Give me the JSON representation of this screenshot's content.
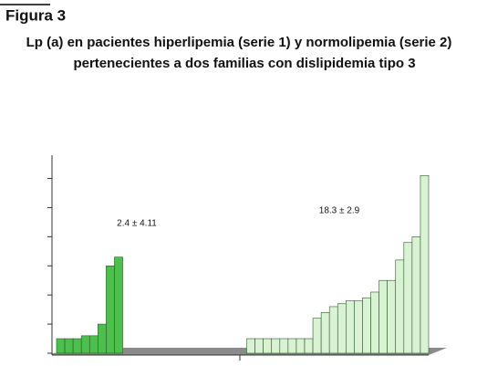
{
  "chart_data": {
    "type": "bar",
    "figure_label": "Figura 3",
    "title_lines": [
      "Lp (a) en pacientes hiperlipemia (serie 1) y normolipemia (serie 2)",
      "pertenecientes a dos familias con dislipidemia tipo 3"
    ],
    "annotations": [
      "2.4 ± 4.11",
      "18.3 ± 2.9"
    ],
    "categories": [
      null,
      null,
      null,
      null,
      null,
      null,
      null,
      null,
      null,
      null,
      null,
      null,
      null,
      null,
      null,
      null,
      null,
      null,
      null,
      null,
      null,
      null,
      null,
      null,
      null,
      null,
      null,
      null,
      null,
      null,
      null,
      null,
      null,
      null,
      null,
      null,
      null,
      null,
      null,
      null,
      null,
      null,
      null,
      null,
      null
    ],
    "series": [
      {
        "color": "#4cbf4c",
        "values": [
          0.5,
          0.5,
          0.5,
          0.6,
          0.6,
          1.0,
          3.0,
          3.3,
          null,
          null,
          null,
          null,
          null,
          null,
          null,
          null,
          null,
          null,
          null,
          null,
          null,
          null,
          null,
          null,
          null,
          null,
          null,
          null,
          null,
          null,
          null,
          null,
          null,
          null,
          null,
          null,
          null,
          null,
          null,
          null,
          null,
          null,
          null,
          null,
          null
        ]
      },
      {
        "color": "#d9f2d3",
        "values": [
          null,
          null,
          null,
          null,
          null,
          null,
          null,
          null,
          null,
          null,
          null,
          null,
          null,
          null,
          null,
          null,
          null,
          null,
          null,
          null,
          null,
          null,
          null,
          0.5,
          0.5,
          0.5,
          0.5,
          0.5,
          0.5,
          0.5,
          0.5,
          1.2,
          1.4,
          1.6,
          1.7,
          1.8,
          1.8,
          1.9,
          2.1,
          2.5,
          2.5,
          3.2,
          3.8,
          4.0,
          6.1
        ]
      }
    ],
    "ylim": [
      0,
      6.8
    ],
    "yticks": [
      0,
      1,
      2,
      3,
      4,
      5,
      6
    ]
  }
}
